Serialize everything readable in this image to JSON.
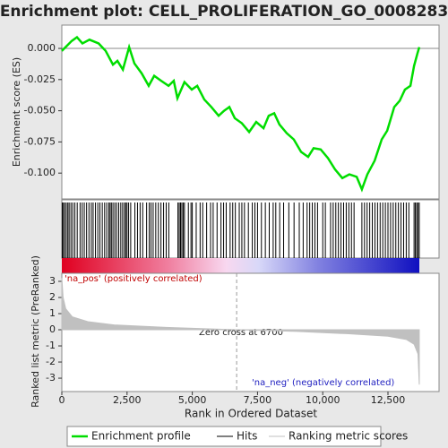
{
  "chart_data": [
    {
      "type": "line",
      "title": "Enrichment plot: CELL_PROLIFERATION_GO_0008283",
      "ylabel": "Enrichment score (ES)",
      "xlim": [
        0,
        14457
      ],
      "ylim": [
        -0.1207,
        0.0187
      ],
      "yticks": [
        {
          "value": 0,
          "label": "0.000"
        },
        {
          "value": -0.025,
          "label": "-0.025"
        },
        {
          "value": -0.05,
          "label": "-0.050"
        },
        {
          "value": -0.075,
          "label": "-0.075"
        },
        {
          "value": -0.1,
          "label": "-0.100"
        }
      ],
      "series": [
        {
          "name": "Enrichment profile",
          "color": "#00dd00",
          "x": [
            0,
            380,
            580,
            790,
            1060,
            1410,
            1680,
            1960,
            2130,
            2340,
            2580,
            2780,
            3060,
            3330,
            3540,
            3810,
            4090,
            4290,
            4430,
            4700,
            4980,
            5190,
            5460,
            5730,
            6010,
            6220,
            6420,
            6630,
            6900,
            7180,
            7450,
            7730,
            7930,
            8140,
            8340,
            8620,
            8890,
            9170,
            9440,
            9650,
            9920,
            10200,
            10470,
            10750,
            11020,
            11300,
            11500,
            11710,
            11990,
            12260,
            12470,
            12740,
            12950,
            13150,
            13360,
            13500,
            13630,
            13700
          ],
          "values": [
            -0.002,
            0.006,
            0.009,
            0.004,
            0.007,
            0.004,
            -0.002,
            -0.013,
            -0.01,
            -0.017,
            0.001,
            -0.012,
            -0.02,
            -0.03,
            -0.022,
            -0.026,
            -0.03,
            -0.026,
            -0.04,
            -0.027,
            -0.033,
            -0.03,
            -0.041,
            -0.047,
            -0.054,
            -0.05,
            -0.047,
            -0.056,
            -0.06,
            -0.067,
            -0.059,
            -0.064,
            -0.054,
            -0.052,
            -0.061,
            -0.068,
            -0.073,
            -0.083,
            -0.087,
            -0.08,
            -0.081,
            -0.088,
            -0.097,
            -0.104,
            -0.101,
            -0.103,
            -0.113,
            -0.101,
            -0.09,
            -0.073,
            -0.066,
            -0.047,
            -0.042,
            -0.033,
            -0.03,
            -0.014,
            -0.004,
            0.001
          ]
        }
      ]
    },
    {
      "type": "hits",
      "name": "Hits",
      "color": "#000000",
      "xlim": [
        0,
        14457
      ],
      "x": [
        20,
        60,
        110,
        170,
        230,
        280,
        350,
        420,
        500,
        590,
        700,
        780,
        860,
        950,
        1040,
        1130,
        1200,
        1290,
        1380,
        1460,
        1550,
        1640,
        1720,
        1800,
        1850,
        1900,
        1960,
        2030,
        2100,
        2180,
        2260,
        2330,
        2400,
        2450,
        2500,
        2560,
        2640,
        2800,
        2900,
        3000,
        3100,
        3250,
        3350,
        3420,
        3500,
        3600,
        3700,
        3800,
        3900,
        4000,
        4100,
        4450,
        4500,
        4550,
        4600,
        4650,
        4700,
        4850,
        4950,
        5000,
        5150,
        5300,
        5400,
        5550,
        5700,
        5800,
        5950,
        6100,
        6200,
        6300,
        6450,
        6550,
        6650,
        6800,
        6900,
        7000,
        7150,
        7300,
        7400,
        7500,
        7650,
        7800,
        7950,
        8100,
        8200,
        8350,
        8500,
        8700,
        8900,
        9100,
        9250,
        9400,
        9500,
        9600,
        9700,
        9800,
        10000,
        10100,
        10300,
        10400,
        10500,
        10600,
        10700,
        10800,
        10900,
        11000,
        11100,
        11200,
        11500,
        11600,
        11700,
        11800,
        11900,
        12000,
        12100,
        12200,
        12300,
        12400,
        12500,
        12600,
        12700,
        12800,
        12900,
        13000,
        13100,
        13200,
        13300,
        13500,
        13550,
        13600,
        13650,
        13700
      ]
    },
    {
      "type": "area",
      "xlabel": "Rank in Ordered Dataset",
      "ylabel": "Ranked list metric (PreRanked)",
      "xlim": [
        0,
        14457
      ],
      "ylim": [
        -3.83,
        3.5
      ],
      "xticks": [
        0,
        {
          "value": 2500,
          "label": "2,500"
        },
        {
          "value": 5000,
          "label": "5,000"
        },
        {
          "value": 7500,
          "label": "7,500"
        },
        {
          "value": 10000,
          "label": "10,000"
        },
        {
          "value": 12500,
          "label": "12,500"
        }
      ],
      "yticks": [
        3,
        2,
        1,
        0,
        -1,
        -2,
        -3
      ],
      "series": [
        {
          "name": "Ranking metric scores",
          "color": "#c0c0c0",
          "x": [
            0,
            50,
            150,
            400,
            1000,
            2000,
            4000,
            6700,
            9000,
            11000,
            12500,
            13200,
            13500,
            13650,
            13700
          ],
          "values": [
            3.2,
            2.0,
            1.3,
            0.8,
            0.5,
            0.3,
            0.15,
            0,
            -0.1,
            -0.25,
            -0.4,
            -0.6,
            -0.9,
            -1.5,
            -3.4
          ]
        }
      ],
      "zero_cross": 6700,
      "annotations": [
        "'na_pos' (positively correlated)",
        "Zero cross at 6700",
        "'na_neg' (negatively correlated)"
      ]
    }
  ]
}
